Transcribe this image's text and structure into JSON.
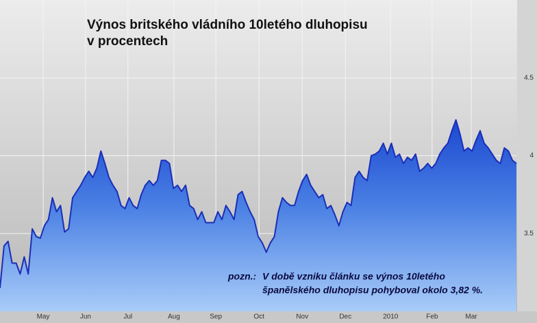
{
  "chart_data": {
    "type": "area",
    "title": [
      "Výnos britského vládního 10letého dluhopisu",
      "v procentech"
    ],
    "annotation": {
      "label": "pozn.:",
      "lines": [
        "V době vzniku článku se výnos 10letého",
        "španělského dluhopisu pohyboval okolo 3,82 %."
      ]
    },
    "color": "#1a2eb8",
    "values": [
      3.15,
      3.42,
      3.45,
      3.31,
      3.31,
      3.24,
      3.35,
      3.24,
      3.53,
      3.48,
      3.47,
      3.55,
      3.59,
      3.73,
      3.64,
      3.68,
      3.51,
      3.53,
      3.73,
      3.77,
      3.81,
      3.86,
      3.9,
      3.86,
      3.92,
      4.03,
      3.95,
      3.86,
      3.81,
      3.77,
      3.68,
      3.66,
      3.73,
      3.68,
      3.66,
      3.75,
      3.81,
      3.84,
      3.81,
      3.84,
      3.97,
      3.97,
      3.95,
      3.79,
      3.81,
      3.77,
      3.81,
      3.68,
      3.66,
      3.59,
      3.64,
      3.57,
      3.57,
      3.57,
      3.64,
      3.59,
      3.68,
      3.64,
      3.59,
      3.75,
      3.77,
      3.7,
      3.64,
      3.59,
      3.48,
      3.44,
      3.38,
      3.44,
      3.48,
      3.64,
      3.73,
      3.7,
      3.68,
      3.68,
      3.77,
      3.84,
      3.88,
      3.81,
      3.77,
      3.73,
      3.75,
      3.66,
      3.68,
      3.62,
      3.55,
      3.64,
      3.7,
      3.68,
      3.86,
      3.9,
      3.86,
      3.84,
      4.0,
      4.01,
      4.03,
      4.08,
      4.01,
      4.08,
      3.99,
      4.01,
      3.95,
      3.99,
      3.97,
      4.01,
      3.9,
      3.92,
      3.95,
      3.92,
      3.95,
      4.01,
      4.05,
      4.08,
      4.16,
      4.23,
      4.14,
      4.03,
      4.05,
      4.03,
      4.1,
      4.16,
      4.08,
      4.05,
      4.01,
      3.97,
      3.95,
      4.05,
      4.03,
      3.97,
      3.95
    ],
    "xticks": [
      {
        "value": 10.7,
        "label": "May"
      },
      {
        "value": 21.2,
        "label": "Jun"
      },
      {
        "value": 31.7,
        "label": "Jul"
      },
      {
        "value": 43.1,
        "label": "Aug"
      },
      {
        "value": 53.5,
        "label": "Sep"
      },
      {
        "value": 64.2,
        "label": "Oct"
      },
      {
        "value": 74.9,
        "label": "Nov"
      },
      {
        "value": 85.6,
        "label": "Dec"
      },
      {
        "value": 96.8,
        "label": "2010"
      },
      {
        "value": 107.1,
        "label": "Feb"
      },
      {
        "value": 116.8,
        "label": "Mar"
      }
    ],
    "ylim": [
      3,
      5
    ],
    "yticks": [
      3.5,
      4,
      4.5
    ],
    "grid": true
  }
}
